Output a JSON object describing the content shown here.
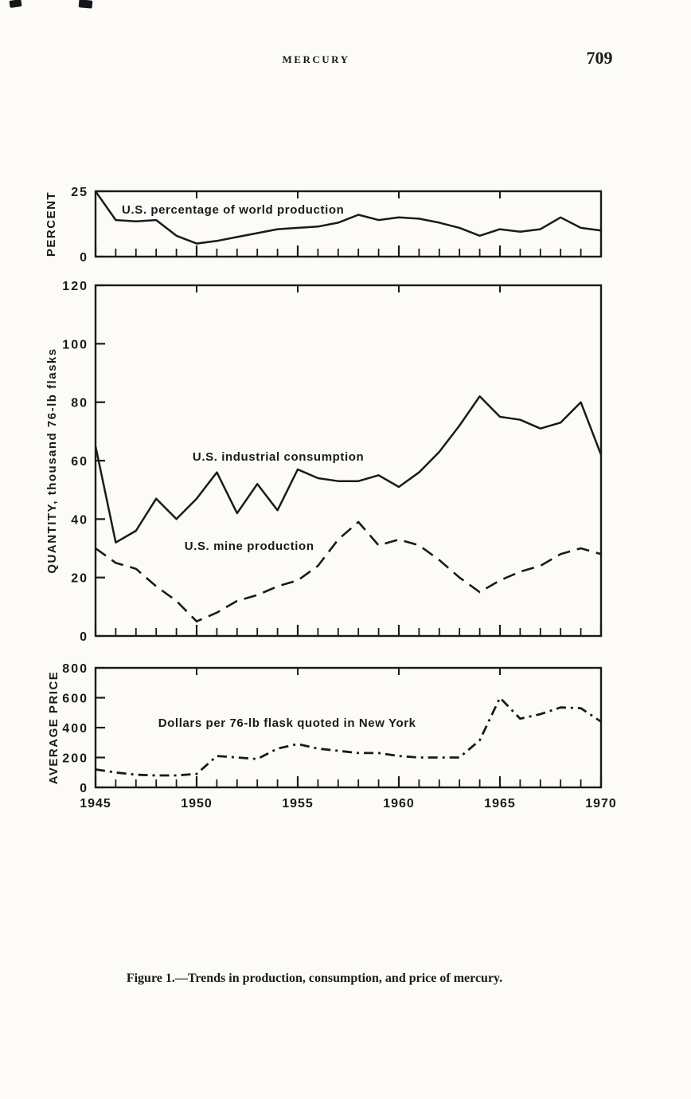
{
  "page": {
    "header": "MERCURY",
    "page_number": "709",
    "caption": "Figure 1.—Trends in production, consumption, and price of mercury."
  },
  "colors": {
    "ink": "#1a1a1a",
    "paper": "#fcfbf7"
  },
  "chart_data": [
    {
      "type": "line",
      "panel": "percent",
      "ylabel": "PERCENT",
      "xlim": [
        1945,
        1970
      ],
      "ylim": [
        0,
        25
      ],
      "yticks": [
        25,
        0
      ],
      "grid": false,
      "x": [
        1945,
        1946,
        1947,
        1948,
        1949,
        1950,
        1951,
        1952,
        1953,
        1954,
        1955,
        1956,
        1957,
        1958,
        1959,
        1960,
        1961,
        1962,
        1963,
        1964,
        1965,
        1966,
        1967,
        1968,
        1969,
        1970
      ],
      "series": [
        {
          "name": "U.S. percentage of world production",
          "line_style": "solid",
          "values": [
            25,
            14,
            13.5,
            14,
            8,
            5,
            6,
            7.5,
            9,
            10.5,
            11,
            11.5,
            13,
            16,
            14,
            15,
            14.5,
            13,
            11,
            8,
            10.5,
            9.5,
            10.5,
            15,
            11,
            10
          ]
        }
      ],
      "annotations": [
        {
          "text": "U.S. percentage of world production",
          "x": 1946.3,
          "y": 16.5
        }
      ]
    },
    {
      "type": "line",
      "panel": "quantity",
      "ylabel": "QUANTITY, thousand 76-lb flasks",
      "xlim": [
        1945,
        1970
      ],
      "ylim": [
        0,
        120
      ],
      "yticks": [
        120,
        100,
        80,
        60,
        40,
        20,
        0
      ],
      "grid": false,
      "x": [
        1945,
        1946,
        1947,
        1948,
        1949,
        1950,
        1951,
        1952,
        1953,
        1954,
        1955,
        1956,
        1957,
        1958,
        1959,
        1960,
        1961,
        1962,
        1963,
        1964,
        1965,
        1966,
        1967,
        1968,
        1969,
        1970
      ],
      "series": [
        {
          "name": "U.S. industrial consumption",
          "line_style": "solid",
          "values": [
            65,
            32,
            36,
            47,
            40,
            47,
            56,
            42,
            52,
            43,
            57,
            54,
            53,
            53,
            55,
            51,
            56,
            63,
            72,
            82,
            75,
            74,
            71,
            73,
            80,
            62
          ]
        },
        {
          "name": "U.S. mine production",
          "line_style": "dashed",
          "values": [
            30,
            25,
            23,
            17,
            12,
            5,
            8,
            12,
            14,
            17,
            19,
            24,
            33,
            39,
            31,
            33,
            31,
            26,
            20,
            15,
            19,
            22,
            24,
            28,
            30,
            28
          ]
        }
      ],
      "annotations": [
        {
          "text": "U.S. industrial consumption",
          "x": 1949.8,
          "y": 60
        },
        {
          "text": "U.S. mine production",
          "x": 1949.4,
          "y": 29.5
        }
      ]
    },
    {
      "type": "line",
      "panel": "price",
      "ylabel": "AVERAGE PRICE",
      "xlim": [
        1945,
        1970
      ],
      "ylim": [
        0,
        800
      ],
      "yticks": [
        800,
        600,
        400,
        200,
        0
      ],
      "xticks": [
        1945,
        1950,
        1955,
        1960,
        1965,
        1970
      ],
      "grid": false,
      "x": [
        1945,
        1946,
        1947,
        1948,
        1949,
        1950,
        1951,
        1952,
        1953,
        1954,
        1955,
        1956,
        1957,
        1958,
        1959,
        1960,
        1961,
        1962,
        1963,
        1964,
        1965,
        1966,
        1967,
        1968,
        1969,
        1970
      ],
      "series": [
        {
          "name": "Dollars per 76-lb flask quoted in New York",
          "line_style": "dashdot",
          "values": [
            120,
            100,
            85,
            80,
            80,
            90,
            210,
            200,
            190,
            260,
            290,
            260,
            245,
            230,
            230,
            210,
            200,
            200,
            200,
            315,
            600,
            460,
            490,
            535,
            530,
            440
          ]
        }
      ],
      "annotations": [
        {
          "text": "Dollars per 76-lb flask quoted in New York",
          "x": 1948.1,
          "y": 405
        }
      ]
    }
  ]
}
